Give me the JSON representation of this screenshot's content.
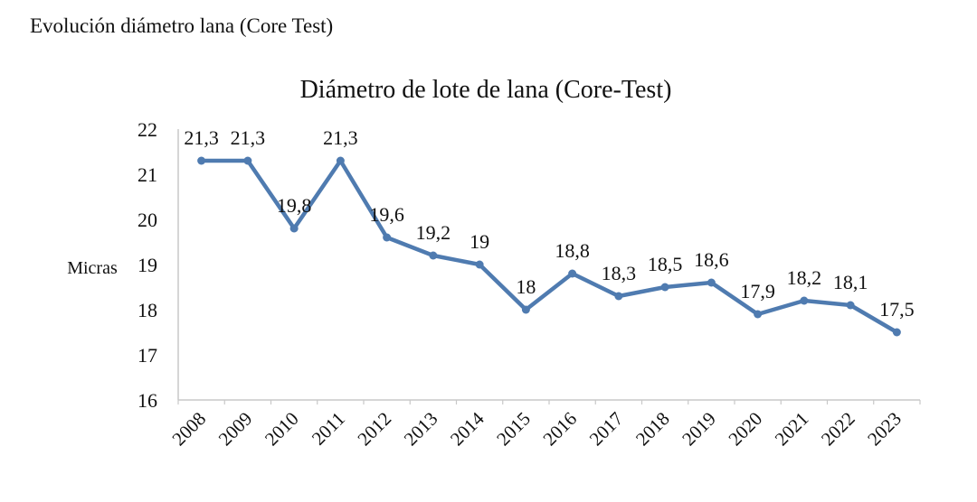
{
  "page": {
    "heading": "Evolución diámetro lana (Core Test)"
  },
  "chart_data": {
    "type": "line",
    "title": "Diámetro de lote de lana (Core-Test)",
    "xlabel": "",
    "ylabel": "Micras",
    "ylim": [
      16,
      22
    ],
    "yticks": [
      16,
      17,
      18,
      19,
      20,
      21,
      22
    ],
    "grid": false,
    "legend": "none",
    "categories": [
      "2008",
      "2009",
      "2010",
      "2011",
      "2012",
      "2013",
      "2014",
      "2015",
      "2016",
      "2017",
      "2018",
      "2019",
      "2020",
      "2021",
      "2022",
      "2023"
    ],
    "series": [
      {
        "values": [
          21.3,
          21.3,
          19.8,
          21.3,
          19.6,
          19.2,
          19,
          18,
          18.8,
          18.3,
          18.5,
          18.6,
          17.9,
          18.2,
          18.1,
          17.5
        ],
        "labels": [
          "21,3",
          "21,3",
          "19,8",
          "21,3",
          "19,6",
          "19,2",
          "19",
          "18",
          "18,8",
          "18,3",
          "18,5",
          "18,6",
          "17,9",
          "18,2",
          "18,1",
          "17,5"
        ],
        "color": "#4f7bb0"
      }
    ],
    "axis_color": "#c8c8c8"
  }
}
